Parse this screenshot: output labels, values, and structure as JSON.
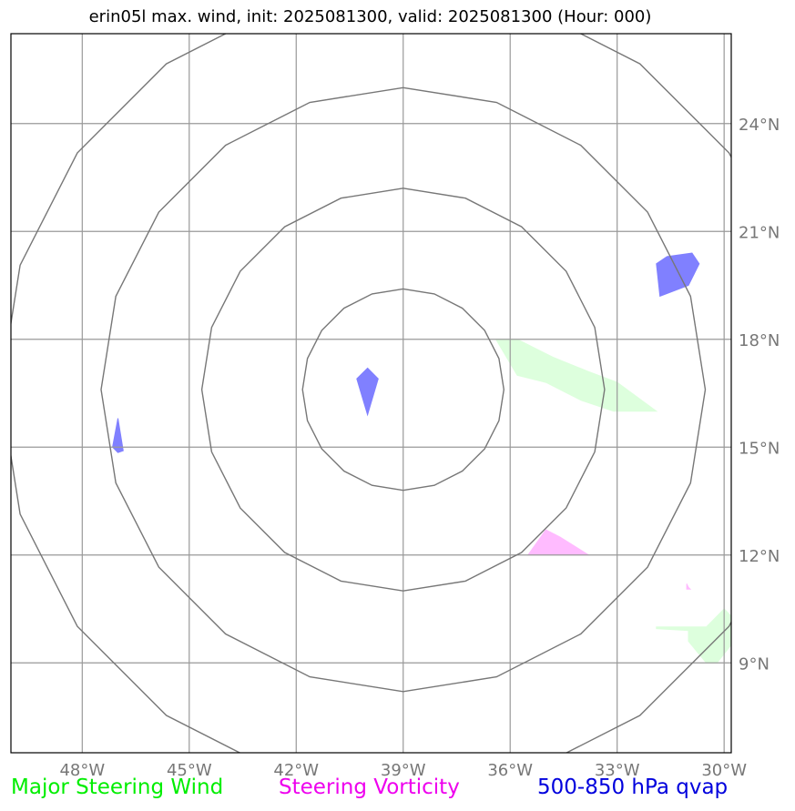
{
  "title": "erin05l max. wind, init: 2025081300, valid: 2025081300 (Hour: 000)",
  "legend": {
    "wind": "Major Steering Wind",
    "vorticity": "Steering Vorticity",
    "qvap": "500-850 hPa qvap"
  },
  "colors": {
    "wind": "#00ee00",
    "vorticity": "#ee00ee",
    "qvap": "#0000dd",
    "wind_fill": "#ddffdd",
    "vort_fill": "#ffbbff",
    "qvap_fill": "#8080ff",
    "grid": "#999999",
    "rings": "#777777"
  },
  "map": {
    "lon_range": [
      -50,
      -29.8
    ],
    "lat_range": [
      6.5,
      26.5
    ],
    "lon_ticks": [
      {
        "value": -48,
        "label": "48°W"
      },
      {
        "value": -45,
        "label": "45°W"
      },
      {
        "value": -42,
        "label": "42°W"
      },
      {
        "value": -39,
        "label": "39°W"
      },
      {
        "value": -36,
        "label": "36°W"
      },
      {
        "value": -33,
        "label": "33°W"
      },
      {
        "value": -30,
        "label": "30°W"
      }
    ],
    "lat_ticks": [
      {
        "value": 24,
        "label": "24°N"
      },
      {
        "value": 21,
        "label": "21°N"
      },
      {
        "value": 18,
        "label": "18°N"
      },
      {
        "value": 15,
        "label": "15°N"
      },
      {
        "value": 12,
        "label": "12°N"
      },
      {
        "value": 9,
        "label": "9°N"
      }
    ],
    "storm_center": {
      "lon": -39,
      "lat": 16.6
    },
    "ring_radii_deg": [
      2.8,
      5.6,
      8.4,
      11.2
    ],
    "regions": [
      {
        "type": "qvap",
        "points": [
          [
            -40.0,
            17.2
          ],
          [
            -39.7,
            16.9
          ],
          [
            -40.0,
            15.9
          ],
          [
            -40.3,
            16.9
          ]
        ]
      },
      {
        "type": "qvap",
        "points": [
          [
            -47.0,
            15.8
          ],
          [
            -46.85,
            14.9
          ],
          [
            -47.0,
            14.85
          ],
          [
            -47.15,
            15.0
          ]
        ]
      },
      {
        "type": "qvap",
        "points": [
          [
            -31.6,
            20.3
          ],
          [
            -30.9,
            20.4
          ],
          [
            -30.7,
            20.1
          ],
          [
            -31.0,
            19.5
          ],
          [
            -31.8,
            19.2
          ],
          [
            -31.9,
            20.1
          ]
        ]
      },
      {
        "type": "wind",
        "points": [
          [
            -36.4,
            18.0
          ],
          [
            -35.8,
            18.0
          ],
          [
            -34.8,
            17.5
          ],
          [
            -33.8,
            17.1
          ],
          [
            -33.0,
            16.8
          ],
          [
            -31.9,
            16.0
          ],
          [
            -33.1,
            16.0
          ],
          [
            -34.0,
            16.3
          ],
          [
            -35.0,
            16.8
          ],
          [
            -35.8,
            17.0
          ]
        ]
      },
      {
        "type": "wind",
        "points": [
          [
            -31.9,
            10.0
          ],
          [
            -30.5,
            10.0
          ],
          [
            -30.0,
            10.5
          ],
          [
            -29.8,
            10.3
          ],
          [
            -29.8,
            9.5
          ],
          [
            -30.2,
            9.0
          ],
          [
            -30.5,
            9.0
          ],
          [
            -31.0,
            9.6
          ],
          [
            -31.0,
            9.9
          ],
          [
            -31.9,
            9.95
          ]
        ]
      },
      {
        "type": "vort",
        "points": [
          [
            -35.0,
            12.7
          ],
          [
            -34.6,
            12.5
          ],
          [
            -33.8,
            12.0
          ],
          [
            -35.5,
            12.0
          ]
        ]
      },
      {
        "type": "vort",
        "points": [
          [
            -31.05,
            11.2
          ],
          [
            -31.0,
            11.1
          ],
          [
            -30.95,
            11.05
          ],
          [
            -31.05,
            11.05
          ]
        ]
      }
    ]
  }
}
